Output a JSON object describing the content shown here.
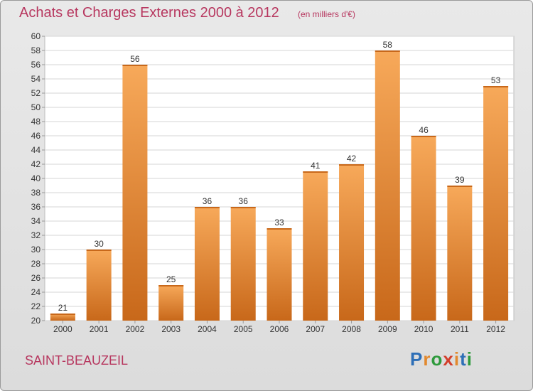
{
  "header": {
    "title": "Achats et Charges Externes 2000 à 2012",
    "subtitle": "(en milliers d'€)"
  },
  "footer": {
    "commune": "SAINT-BEAUZEIL",
    "logo_letters": [
      "P",
      "r",
      "o",
      "x",
      "i",
      "t",
      "i"
    ],
    "logo_colors": [
      "#2e6fb7",
      "#e2892e",
      "#2e9a3c",
      "#d33f2c",
      "#e2892e",
      "#2e6fb7",
      "#2e9a3c"
    ]
  },
  "colors": {
    "bar_light": "#f7a95a",
    "bar_dark": "#c8681a",
    "title": "#b7375f"
  },
  "chart_data": {
    "type": "bar",
    "title": "Achats et Charges Externes 2000 à 2012",
    "subtitle": "(en milliers d'€)",
    "xlabel": "",
    "ylabel": "",
    "categories": [
      "2000",
      "2001",
      "2002",
      "2003",
      "2004",
      "2005",
      "2006",
      "2007",
      "2008",
      "2009",
      "2010",
      "2011",
      "2012"
    ],
    "values": [
      21,
      30,
      56,
      25,
      36,
      36,
      33,
      41,
      42,
      58,
      46,
      39,
      53
    ],
    "data_labels": [
      "21",
      "30",
      "56",
      "25",
      "36",
      "36",
      "33",
      "41",
      "42",
      "58",
      "46",
      "39",
      "53"
    ],
    "ylim": [
      20,
      60
    ],
    "yticks": [
      20,
      22,
      24,
      26,
      28,
      30,
      32,
      34,
      36,
      38,
      40,
      42,
      44,
      46,
      48,
      50,
      52,
      54,
      56,
      58,
      60
    ],
    "ytick_labels": [
      "20",
      "22",
      "24",
      "26",
      "28",
      "30",
      "32",
      "34",
      "36",
      "38",
      "40",
      "42",
      "44",
      "46",
      "48",
      "50",
      "52",
      "54",
      "56",
      "58",
      "60"
    ],
    "grid": true
  }
}
